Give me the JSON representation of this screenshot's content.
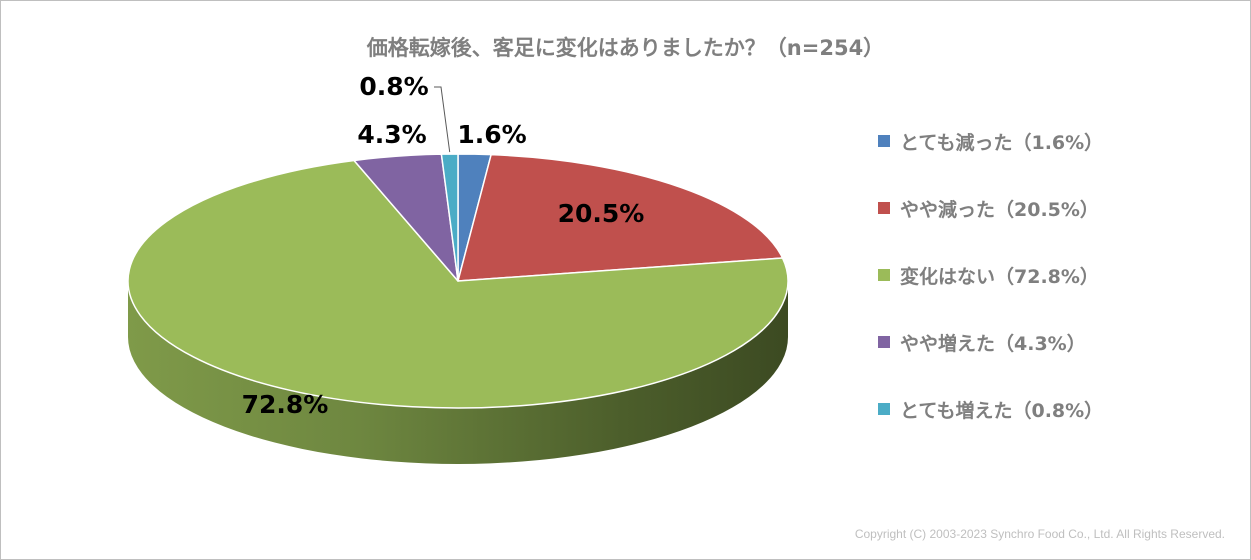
{
  "title": "価格転嫁後、客足に変化はありましたか？（n=254）",
  "copyright": "Copyright (C) 2003-2023   Synchro Food Co., Ltd. All Rights Reserved.",
  "chart_data": {
    "type": "pie",
    "style": "3d-tilted",
    "categories": [
      "とても減った",
      "やや減った",
      "変化はない",
      "やや増えた",
      "とても増えた"
    ],
    "values": [
      1.6,
      20.5,
      72.8,
      4.3,
      0.8
    ],
    "data_labels": [
      "1.6%",
      "20.5%",
      "72.8%",
      "4.3%",
      "0.8%"
    ],
    "colors": [
      "#4f81bd",
      "#c0504d",
      "#9bbb59",
      "#8064a2",
      "#4bacc6"
    ],
    "legend_position": "right"
  },
  "legend": [
    {
      "label": "とても減った（1.6%）",
      "color": "#4f81bd"
    },
    {
      "label": "やや減った（20.5%）",
      "color": "#c0504d"
    },
    {
      "label": "変化はない（72.8%）",
      "color": "#9bbb59"
    },
    {
      "label": "やや増えた（4.3%）",
      "color": "#8064a2"
    },
    {
      "label": "とても増えた（0.8%）",
      "color": "#4bacc6"
    }
  ]
}
